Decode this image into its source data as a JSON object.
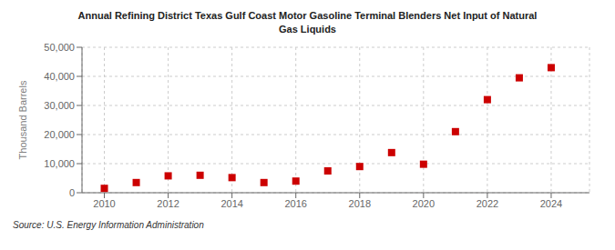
{
  "chart_data": {
    "type": "scatter",
    "title": "Annual Refining District Texas Gulf Coast Motor Gasoline Terminal Blenders Net Input of Natural\nGas Liquids",
    "ylabel": "Thousand Barrels",
    "annotation": "Source: U.S. Energy Information Administration",
    "x": [
      2010,
      2011,
      2012,
      2013,
      2014,
      2015,
      2016,
      2017,
      2018,
      2019,
      2020,
      2021,
      2022,
      2023,
      2024
    ],
    "values": [
      1500,
      3500,
      5800,
      6000,
      5200,
      3500,
      4000,
      7500,
      9000,
      13800,
      9800,
      21000,
      32000,
      39500,
      43000
    ],
    "color": "#cc0000",
    "marker": "square",
    "xlim": [
      2009.3,
      2025.2
    ],
    "xticks": [
      2010,
      2012,
      2014,
      2016,
      2018,
      2020,
      2022,
      2024
    ],
    "ylim": [
      0,
      50000
    ],
    "yticks": [
      0,
      {
        "value": 10000,
        "label": "10,000"
      },
      {
        "value": 20000,
        "label": "20,000"
      },
      {
        "value": 30000,
        "label": "30,000"
      },
      {
        "value": 40000,
        "label": "40,000"
      },
      {
        "value": 50000,
        "label": "50,000"
      }
    ],
    "grid": true
  }
}
